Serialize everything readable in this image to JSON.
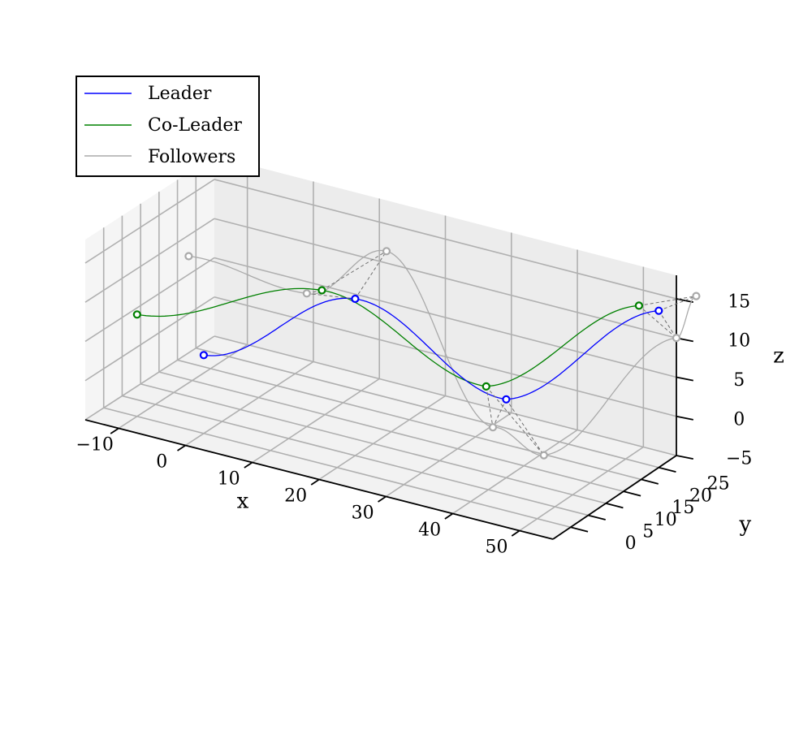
{
  "chart_data": {
    "type": "line",
    "projection": "3d",
    "title": "",
    "xlabel": "x",
    "ylabel": "y",
    "zlabel": "z",
    "xlim": [
      -15,
      55
    ],
    "ylim": [
      -5,
      30
    ],
    "zlim": [
      -5,
      18
    ],
    "x_ticks": [
      -10,
      0,
      10,
      20,
      30,
      40,
      50
    ],
    "x_tick_labels": [
      "−10",
      "0",
      "10",
      "20",
      "30",
      "40",
      "50"
    ],
    "y_ticks": [
      0,
      5,
      10,
      15,
      20,
      25
    ],
    "y_tick_labels": [
      "0",
      "5",
      "10",
      "15",
      "20",
      "25"
    ],
    "z_ticks": [
      -5,
      0,
      5,
      10,
      15
    ],
    "z_tick_labels": [
      "−5",
      "0",
      "5",
      "10",
      "15"
    ],
    "grid": true,
    "legend_position": "top-left",
    "legend": [
      {
        "label": "Leader",
        "color": "#0000ff"
      },
      {
        "label": "Co-Leader",
        "color": "#008000"
      },
      {
        "label": "Followers",
        "color": "#aaaaaa"
      }
    ],
    "series": [
      {
        "name": "Leader",
        "color": "#0000ff",
        "waypoints": [
          {
            "x": 0,
            "y": 0,
            "z": 5
          },
          {
            "x": 20,
            "y": 5,
            "z": 15
          },
          {
            "x": 40,
            "y": 10,
            "z": 5
          },
          {
            "x": 55,
            "y": 25,
            "z": 15
          }
        ]
      },
      {
        "name": "Co-Leader",
        "color": "#008000",
        "waypoints": [
          {
            "x": -10,
            "y": 0,
            "z": 8
          },
          {
            "x": 15,
            "y": 5,
            "z": 15
          },
          {
            "x": 37,
            "y": 10,
            "z": 6
          },
          {
            "x": 52,
            "y": 25,
            "z": 15
          }
        ]
      },
      {
        "name": "Followers",
        "color": "#aaaaaa",
        "waypoints": [
          {
            "x": -5,
            "y": 5,
            "z": 15
          },
          {
            "x": 10,
            "y": 10,
            "z": 12
          },
          {
            "x": 22,
            "y": 10,
            "z": 20
          },
          {
            "x": 38,
            "y": 10,
            "z": 1
          },
          {
            "x": 43,
            "y": 15,
            "z": -3
          },
          {
            "x": 55,
            "y": 30,
            "z": 10
          },
          {
            "x": 58,
            "y": 30,
            "z": 16
          }
        ]
      }
    ]
  }
}
